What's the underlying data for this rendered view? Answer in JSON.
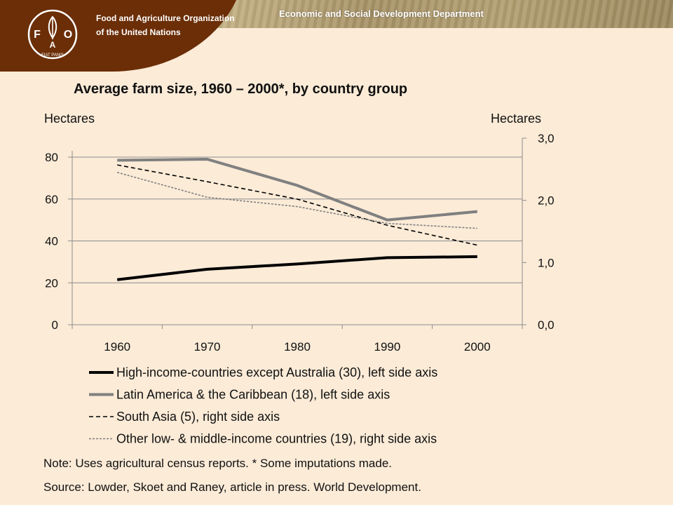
{
  "header": {
    "org_name": "Food and Agriculture Organization of the United Nations",
    "department": "Economic and Social Development Department",
    "logo_letters": [
      "F",
      "A",
      "O"
    ],
    "logo_motto": "FIAT PANIS"
  },
  "chart_data": {
    "type": "line",
    "title": "Average farm size, 1960 – 2000*, by country group",
    "left_axis_label": "Hectares",
    "right_axis_label": "Hectares",
    "categories": [
      "1960",
      "1970",
      "1980",
      "1990",
      "2000"
    ],
    "left_ylim": [
      0,
      80
    ],
    "left_ticks": [
      "0",
      "20",
      "40",
      "60",
      "80"
    ],
    "right_ylim": [
      0,
      3.0
    ],
    "right_ticks": [
      "0,0",
      "1,0",
      "2,0",
      "3,0"
    ],
    "gridlines": true,
    "legend_position": "bottom",
    "series": [
      {
        "name": "High-income-countries except Australia (30), left side axis",
        "axis": "left",
        "values": [
          21.5,
          26.5,
          29,
          32,
          32.5
        ],
        "color": "#000000",
        "style": "solid-thick"
      },
      {
        "name": "Latin America & the Caribbean (18), left side axis",
        "axis": "left",
        "values": [
          78.5,
          79,
          66.5,
          50,
          54
        ],
        "color": "#808080",
        "style": "solid-thick"
      },
      {
        "name": "South Asia (5), right side axis",
        "axis": "right",
        "values": [
          2.57,
          2.3,
          2.02,
          1.6,
          1.28
        ],
        "color": "#000000",
        "style": "dashed"
      },
      {
        "name": "Other low- & middle-income countries (19), right side axis",
        "axis": "right",
        "values": [
          2.45,
          2.05,
          1.9,
          1.63,
          1.55
        ],
        "color": "#808080",
        "style": "dotted"
      }
    ]
  },
  "footer": {
    "note": "Note: Uses agricultural census reports. * Some imputations made.",
    "source": "Source: Lowder, Skoet and Raney, article in press. World Development."
  }
}
